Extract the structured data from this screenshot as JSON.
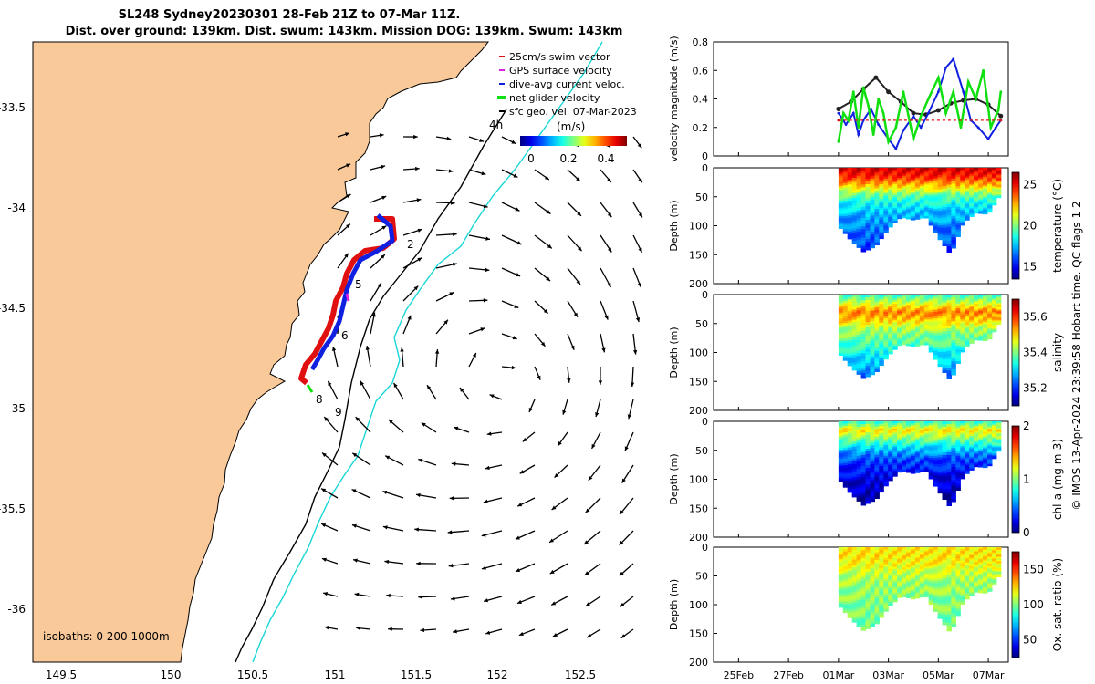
{
  "title": {
    "line1": "SL248 Sydney20230301 28-Feb 21Z to 07-Mar 11Z.",
    "line2": "Dist. over ground: 139km. Dist. swum: 143km. Mission DOG: 139km. Swum: 143km"
  },
  "side_note": "© IMOS 13-Apr-2024 23:39:58 Hobart time. QC flags 1 2",
  "colors": {
    "land": "#f9c99a",
    "isobath_200": "#000000",
    "isobath_1000": "#19d6d6",
    "swim": "#e01010",
    "gps": "#e020e0",
    "dive_avg": "#1020e0",
    "net": "#10e010"
  },
  "map": {
    "x_ticks": [
      "149.5",
      "150",
      "150.5",
      "151",
      "151.5",
      "152",
      "152.5"
    ],
    "y_ticks": [
      "-33.5",
      "-34",
      "-34.5",
      "-35",
      "-35.5",
      "-36"
    ],
    "legend": [
      {
        "label": "25cm/s swim vector",
        "color": "#e01010"
      },
      {
        "label": "GPS surface velocity",
        "color": "#e020e0"
      },
      {
        "label": "dive-avg current veloc.",
        "color": "#1020e0"
      },
      {
        "label": "net glider velocity",
        "color": "#10e010"
      },
      {
        "label": "sfc geo. vel. 07-Mar-2023",
        "color": "#000000"
      }
    ],
    "colorbar_unit": "(m/s)",
    "colorbar_ticks": [
      "0",
      "0.2",
      "0.4"
    ],
    "day_labels": [
      "4h",
      "2",
      "5",
      "6",
      "8",
      "9"
    ],
    "isobaths_label": "isobaths: 0   200  1000m"
  },
  "chart_data": [
    {
      "type": "line",
      "title": "",
      "ylabel": "velocity magnitude (m/s)",
      "ylim": [
        0,
        0.8
      ],
      "y_ticks": [
        "0",
        "0.2",
        "0.4",
        "0.6",
        "0.8"
      ],
      "x_ticks": [
        "25Feb",
        "27Feb",
        "01Mar",
        "03Mar",
        "05Mar",
        "07Mar"
      ],
      "series": [
        {
          "name": "geostrophic surface velocity",
          "color": "#222222",
          "x": [
            1.0,
            1.5,
            2.0,
            2.5,
            3.0,
            3.5,
            4.0,
            4.5,
            5.0,
            5.5,
            6.0,
            6.5,
            7.0,
            7.5
          ],
          "values": [
            0.33,
            0.38,
            0.47,
            0.55,
            0.45,
            0.38,
            0.3,
            0.29,
            0.32,
            0.37,
            0.39,
            0.4,
            0.36,
            0.28
          ]
        },
        {
          "name": "dive-avg current veloc.",
          "color": "#1020e0",
          "x": [
            1.0,
            1.3,
            1.6,
            1.8,
            2.0,
            2.3,
            2.6,
            3.0,
            3.3,
            3.6,
            4.0,
            4.3,
            4.6,
            5.0,
            5.3,
            5.6,
            6.0,
            6.3,
            6.6,
            7.0,
            7.3,
            7.5
          ],
          "values": [
            0.3,
            0.22,
            0.3,
            0.15,
            0.25,
            0.33,
            0.22,
            0.12,
            0.05,
            0.18,
            0.28,
            0.2,
            0.3,
            0.45,
            0.62,
            0.68,
            0.45,
            0.25,
            0.2,
            0.12,
            0.2,
            0.25
          ]
        },
        {
          "name": "net glider velocity",
          "color": "#10e010",
          "x": [
            1.0,
            1.2,
            1.4,
            1.6,
            1.8,
            2.0,
            2.2,
            2.4,
            2.6,
            2.8,
            3.0,
            3.3,
            3.6,
            4.0,
            4.3,
            4.6,
            5.0,
            5.3,
            5.6,
            5.9,
            6.2,
            6.5,
            6.8,
            7.1,
            7.4,
            7.5
          ],
          "values": [
            0.1,
            0.3,
            0.25,
            0.45,
            0.2,
            0.48,
            0.35,
            0.15,
            0.4,
            0.3,
            0.1,
            0.2,
            0.45,
            0.12,
            0.28,
            0.4,
            0.55,
            0.3,
            0.45,
            0.2,
            0.52,
            0.4,
            0.6,
            0.2,
            0.32,
            0.45
          ]
        },
        {
          "name": "25cm/s swim vector",
          "color": "#e01010",
          "x": [
            1.0,
            7.5
          ],
          "values": [
            0.25,
            0.25
          ]
        }
      ]
    },
    {
      "type": "heatmap",
      "ylabel": "Depth (m)",
      "y_ticks": [
        "0",
        "50",
        "100",
        "150",
        "200"
      ],
      "colorbar_label": "temperature (°C)",
      "colorbar_ticks": [
        "15",
        "20",
        "25"
      ],
      "colorbar_range": [
        13.5,
        26.5
      ],
      "x": [
        1.0,
        1.5,
        2.0,
        2.5,
        3.0,
        3.5,
        4.0,
        4.5,
        5.0,
        5.5,
        6.0,
        6.5,
        7.0,
        7.5
      ],
      "max_depth": [
        100,
        125,
        145,
        135,
        105,
        85,
        90,
        85,
        120,
        150,
        95,
        78,
        80,
        45
      ],
      "profile_depth": [
        0,
        15,
        30,
        45,
        60,
        80,
        100,
        125,
        150
      ],
      "profile_values": [
        25.5,
        24.5,
        22.5,
        20.0,
        18.5,
        17.5,
        16.8,
        16.2,
        15.5
      ]
    },
    {
      "type": "heatmap",
      "ylabel": "Depth (m)",
      "y_ticks": [
        "0",
        "50",
        "100",
        "150",
        "200"
      ],
      "colorbar_label": "salinity",
      "colorbar_ticks": [
        "35.2",
        "35.4",
        "35.6"
      ],
      "colorbar_range": [
        35.1,
        35.7
      ],
      "x": [
        1.0,
        1.5,
        2.0,
        2.5,
        3.0,
        3.5,
        4.0,
        4.5,
        5.0,
        5.5,
        6.0,
        6.5,
        7.0,
        7.5
      ],
      "max_depth": [
        100,
        125,
        145,
        135,
        105,
        85,
        90,
        85,
        120,
        150,
        95,
        78,
        80,
        45
      ],
      "profile_depth": [
        0,
        15,
        30,
        45,
        60,
        80,
        100,
        125,
        150
      ],
      "profile_values": [
        35.35,
        35.45,
        35.55,
        35.5,
        35.42,
        35.38,
        35.33,
        35.28,
        35.22
      ]
    },
    {
      "type": "heatmap",
      "ylabel": "Depth (m)",
      "y_ticks": [
        "0",
        "50",
        "100",
        "150",
        "200"
      ],
      "colorbar_label": "chl-a (mg m-3)",
      "colorbar_ticks": [
        "0",
        "1",
        "2"
      ],
      "colorbar_range": [
        0,
        2
      ],
      "x": [
        1.0,
        1.5,
        2.0,
        2.5,
        3.0,
        3.5,
        4.0,
        4.5,
        5.0,
        5.5,
        6.0,
        6.5,
        7.0,
        7.5
      ],
      "max_depth": [
        100,
        125,
        145,
        135,
        105,
        85,
        90,
        85,
        120,
        150,
        95,
        78,
        80,
        45
      ],
      "profile_depth": [
        0,
        15,
        30,
        45,
        60,
        80,
        100,
        125,
        150
      ],
      "profile_values": [
        0.8,
        1.3,
        1.0,
        0.7,
        0.45,
        0.3,
        0.2,
        0.12,
        0.08
      ]
    },
    {
      "type": "heatmap",
      "ylabel": "Depth (m)",
      "y_ticks": [
        "0",
        "50",
        "100",
        "150",
        "200"
      ],
      "colorbar_label": "Ox. sat. ratio (%)",
      "colorbar_ticks": [
        "50",
        "100",
        "150"
      ],
      "colorbar_range": [
        25,
        175
      ],
      "x_ticks": [
        "25Feb",
        "27Feb",
        "01Mar",
        "03Mar",
        "05Mar",
        "07Mar"
      ],
      "x": [
        1.0,
        1.5,
        2.0,
        2.5,
        3.0,
        3.5,
        4.0,
        4.5,
        5.0,
        5.5,
        6.0,
        6.5,
        7.0,
        7.5
      ],
      "max_depth": [
        100,
        125,
        145,
        135,
        105,
        85,
        90,
        85,
        120,
        150,
        95,
        78,
        80,
        45
      ],
      "profile_depth": [
        0,
        15,
        30,
        45,
        60,
        80,
        100,
        125,
        150
      ],
      "profile_values": [
        120,
        122,
        118,
        110,
        105,
        102,
        100,
        98,
        97
      ]
    }
  ]
}
